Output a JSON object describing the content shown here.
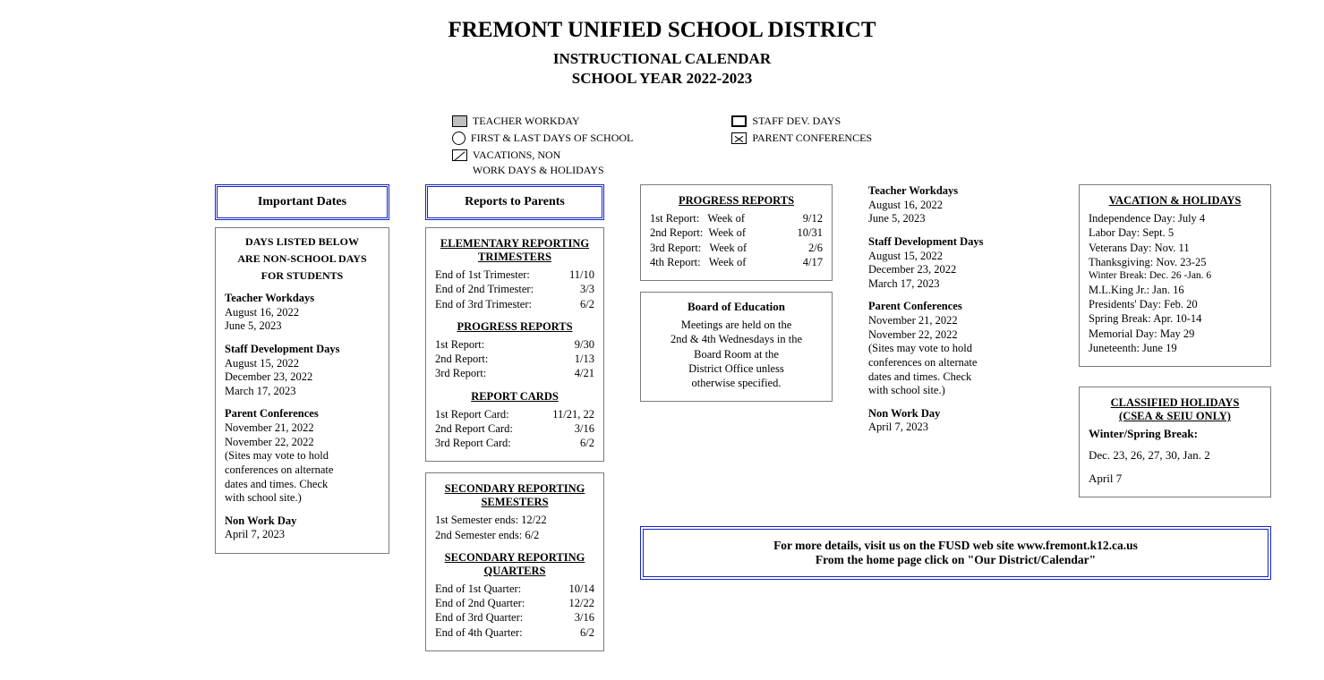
{
  "header": {
    "district": "FREMONT UNIFIED SCHOOL DISTRICT",
    "line2": "INSTRUCTIONAL CALENDAR",
    "line3": "SCHOOL YEAR 2022-2023"
  },
  "legend": {
    "workday": "TEACHER WORKDAY",
    "firstlast": "FIRST & LAST DAYS OF SCHOOL",
    "vacations": "VACATIONS, NON",
    "vacations_sub": "WORK DAYS & HOLIDAYS",
    "staffdev": "STAFF DEV. DAYS",
    "parentconf": "PARENT CONFERENCES"
  },
  "col1": {
    "title": "Important Dates",
    "box_head1": "DAYS LISTED BELOW",
    "box_head2": "ARE NON-SCHOOL DAYS",
    "box_head3": "FOR STUDENTS",
    "teacher_wd_lbl": "Teacher Workdays",
    "teacher_wd1": "August 16, 2022",
    "teacher_wd2": "June 5, 2023",
    "sdd_lbl": "Staff Development Days",
    "sdd1": "August 15, 2022",
    "sdd2": "December 23, 2022",
    "sdd3": "March 17, 2023",
    "pc_lbl": "Parent Conferences",
    "pc1": "November 21, 2022",
    "pc2": "November 22, 2022",
    "pc_note1": "(Sites may vote to hold",
    "pc_note2": "conferences on alternate",
    "pc_note3": "dates and times. Check",
    "pc_note4": "with school site.)",
    "nwd_lbl": "Non Work Day",
    "nwd1": "April 7, 2023"
  },
  "col2": {
    "title": "Reports to Parents",
    "elem_head": "ELEMENTARY REPORTING TRIMESTERS",
    "t1": {
      "l": "End of 1st Trimester:",
      "r": "11/10"
    },
    "t2": {
      "l": "End of 2nd Trimester:",
      "r": "3/3"
    },
    "t3": {
      "l": "End of 3rd Trimester:",
      "r": "6/2"
    },
    "pr_head": "PROGRESS REPORTS",
    "pr1": {
      "l": "1st Report:",
      "r": "9/30"
    },
    "pr2": {
      "l": "2nd Report:",
      "r": "1/13"
    },
    "pr3": {
      "l": "3rd Report:",
      "r": "4/21"
    },
    "rc_head": "REPORT CARDS",
    "rc1": {
      "l": "1st Report Card:",
      "r": "11/21, 22"
    },
    "rc2": {
      "l": "2nd Report Card:",
      "r": "3/16"
    },
    "rc3": {
      "l": "3rd Report Card:",
      "r": "6/2"
    },
    "sec_sem_head": "SECONDARY REPORTING SEMESTERS",
    "s1": "1st Semester ends: 12/22",
    "s2": "2nd Semester ends: 6/2",
    "sec_q_head": "SECONDARY REPORTING QUARTERS",
    "q1": {
      "l": "End of 1st Quarter:",
      "r": "10/14"
    },
    "q2": {
      "l": "End of 2nd Quarter:",
      "r": "12/22"
    },
    "q3": {
      "l": "End of 3rd Quarter:",
      "r": "3/16"
    },
    "q4": {
      "l": "End of 4th Quarter:",
      "r": "6/2"
    }
  },
  "col3": {
    "pr_head": "PROGRESS REPORTS",
    "pr1": {
      "l": "1st Report:   Week of",
      "r": "9/12"
    },
    "pr2": {
      "l": "2nd Report:  Week of",
      "r": "10/31"
    },
    "pr3": {
      "l": "3rd Report:   Week of",
      "r": "2/6"
    },
    "pr4": {
      "l": "4th Report:   Week of",
      "r": "4/17"
    },
    "boe_head": "Board of Education",
    "boe1": "Meetings are held on the",
    "boe2": "2nd & 4th Wednesdays in the",
    "boe3": "Board Room at the",
    "boe4": "District Office unless",
    "boe5": "otherwise specified."
  },
  "col4": {
    "tw_lbl": "Teacher Workdays",
    "tw1": "August 16, 2022",
    "tw2": "June 5, 2023",
    "sdd_lbl": "Staff Development Days",
    "sdd1": "August 15, 2022",
    "sdd2": "December 23, 2022",
    "sdd3": "March 17, 2023",
    "pc_lbl": "Parent Conferences",
    "pc1": "November 21, 2022",
    "pc2": "November 22, 2022",
    "pc_note1": "(Sites may vote to hold",
    "pc_note2": "conferences on alternate",
    "pc_note3": "dates and times. Check",
    "pc_note4": "with school site.)",
    "nwd_lbl": "Non Work Day",
    "nwd1": "April 7, 2023"
  },
  "col5": {
    "vh_head": "VACATION & HOLIDAYS",
    "vh": [
      "Independence Day: July 4",
      "Labor Day: Sept. 5",
      "Veterans Day: Nov. 11",
      "Thanksgiving: Nov. 23-25",
      "Winter Break: Dec. 26 -Jan. 6",
      "M.L.King Jr.: Jan. 16",
      "Presidents' Day: Feb. 20",
      "Spring Break: Apr. 10-14",
      "Memorial Day: May 29",
      "Juneteenth: June 19"
    ],
    "ch_head1": "CLASSIFIED HOLIDAYS",
    "ch_head2": "(CSEA & SEIU ONLY)",
    "ws_lbl": "Winter/Spring Break:",
    "ws1": "Dec. 23, 26, 27, 30, Jan. 2",
    "ws2": "April 7"
  },
  "footer": {
    "l1": "For more details, visit us on the FUSD web site www.fremont.k12.ca.us",
    "l2": "From the home page click on \"Our District/Calendar\""
  }
}
